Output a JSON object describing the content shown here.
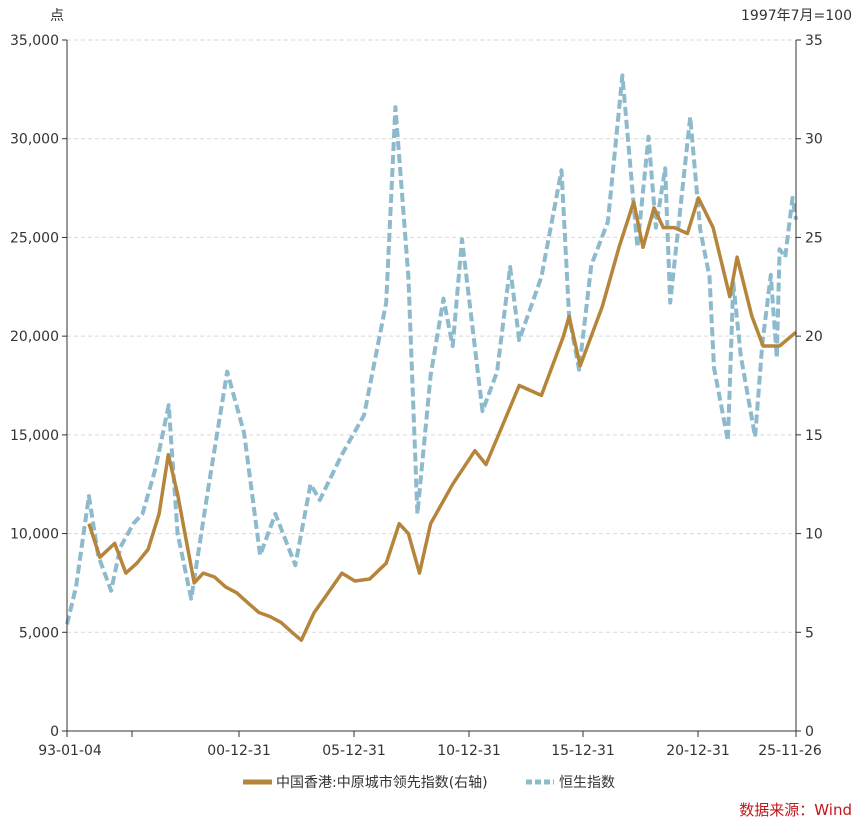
{
  "chart_data": {
    "type": "line",
    "left_unit": "点",
    "right_unit": "1997年7月=100",
    "source_label": "数据来源：Wind",
    "source_color": "#c0161c",
    "grid": "horizontal dashed",
    "legend_position": "bottom-center",
    "left_axis": {
      "min": 0,
      "max": 35000,
      "ticks": [
        "0",
        "5,000",
        "10,000",
        "15,000",
        "20,000",
        "25,000",
        "30,000",
        "35,000"
      ]
    },
    "right_axis": {
      "min": 0,
      "max": 35,
      "ticks": [
        "0",
        "5",
        "10",
        "15",
        "20",
        "25",
        "30",
        "35"
      ]
    },
    "x_axis": {
      "start": "1993-01-04",
      "end": "2025-11-26",
      "tick_labels": [
        "93-01-04",
        "00-12-31",
        "05-12-31",
        "10-12-31",
        "15-12-31",
        "20-12-31",
        "25-11-26"
      ]
    },
    "series": [
      {
        "name": "中国香港:中原城市领先指数(右轴)",
        "axis": "right",
        "color": "#b5853b",
        "style": "solid",
        "points": [
          [
            "1994-01-01",
            10.5
          ],
          [
            "1994-07-01",
            8.8
          ],
          [
            "1995-03-01",
            9.5
          ],
          [
            "1995-09-01",
            8.0
          ],
          [
            "1996-03-01",
            8.5
          ],
          [
            "1996-09-01",
            9.2
          ],
          [
            "1997-03-01",
            11.0
          ],
          [
            "1997-08-01",
            14.0
          ],
          [
            "1998-01-01",
            12.0
          ],
          [
            "1998-06-01",
            9.5
          ],
          [
            "1998-10-01",
            7.5
          ],
          [
            "1999-03-01",
            8.0
          ],
          [
            "1999-09-01",
            7.8
          ],
          [
            "2000-03-01",
            7.3
          ],
          [
            "2000-09-01",
            7.0
          ],
          [
            "2001-03-01",
            6.5
          ],
          [
            "2001-09-01",
            6.0
          ],
          [
            "2002-03-01",
            5.8
          ],
          [
            "2002-09-01",
            5.5
          ],
          [
            "2003-03-01",
            5.0
          ],
          [
            "2003-08-01",
            4.6
          ],
          [
            "2004-03-01",
            6.0
          ],
          [
            "2004-09-01",
            6.8
          ],
          [
            "2005-06-01",
            8.0
          ],
          [
            "2006-01-01",
            7.6
          ],
          [
            "2006-09-01",
            7.7
          ],
          [
            "2007-06-01",
            8.5
          ],
          [
            "2008-01-01",
            10.5
          ],
          [
            "2008-06-01",
            10.0
          ],
          [
            "2008-12-01",
            8.0
          ],
          [
            "2009-06-01",
            10.5
          ],
          [
            "2010-06-01",
            12.5
          ],
          [
            "2011-06-01",
            14.2
          ],
          [
            "2011-12-01",
            13.5
          ],
          [
            "2012-09-01",
            15.5
          ],
          [
            "2013-06-01",
            17.5
          ],
          [
            "2014-06-01",
            17.0
          ],
          [
            "2015-06-01",
            20.0
          ],
          [
            "2015-09-01",
            21.0
          ],
          [
            "2016-03-01",
            18.5
          ],
          [
            "2017-03-01",
            21.5
          ],
          [
            "2017-12-01",
            24.5
          ],
          [
            "2018-08-01",
            26.8
          ],
          [
            "2019-01-01",
            24.5
          ],
          [
            "2019-07-01",
            26.5
          ],
          [
            "2019-12-01",
            25.5
          ],
          [
            "2020-06-01",
            25.5
          ],
          [
            "2021-01-01",
            25.2
          ],
          [
            "2021-07-01",
            27.0
          ],
          [
            "2022-03-01",
            25.5
          ],
          [
            "2022-12-01",
            22.0
          ],
          [
            "2023-04-01",
            24.0
          ],
          [
            "2023-12-01",
            21.0
          ],
          [
            "2024-06-01",
            19.5
          ],
          [
            "2025-03-01",
            19.5
          ],
          [
            "2025-11-26",
            20.2
          ]
        ]
      },
      {
        "name": "恒生指数",
        "axis": "left",
        "color": "#8dbacd",
        "style": "dashed",
        "points": [
          [
            "1993-01-04",
            5400
          ],
          [
            "1993-06-01",
            7300
          ],
          [
            "1993-12-31",
            11900
          ],
          [
            "1994-06-01",
            8900
          ],
          [
            "1995-01-01",
            7100
          ],
          [
            "1995-06-01",
            9300
          ],
          [
            "1996-01-01",
            10500
          ],
          [
            "1996-06-01",
            11000
          ],
          [
            "1997-01-01",
            13300
          ],
          [
            "1997-08-07",
            16500
          ],
          [
            "1998-01-01",
            10000
          ],
          [
            "1998-08-13",
            6700
          ],
          [
            "1999-06-01",
            12500
          ],
          [
            "2000-03-28",
            18200
          ],
          [
            "2000-12-31",
            15100
          ],
          [
            "2001-09-21",
            8900
          ],
          [
            "2002-06-01",
            11000
          ],
          [
            "2002-12-31",
            9300
          ],
          [
            "2003-04-25",
            8400
          ],
          [
            "2003-12-31",
            12500
          ],
          [
            "2004-06-01",
            11700
          ],
          [
            "2005-06-01",
            14000
          ],
          [
            "2006-06-01",
            16000
          ],
          [
            "2007-06-01",
            21700
          ],
          [
            "2007-10-30",
            31600
          ],
          [
            "2008-06-01",
            23000
          ],
          [
            "2008-10-27",
            11000
          ],
          [
            "2009-06-01",
            18000
          ],
          [
            "2009-12-31",
            21900
          ],
          [
            "2010-06-01",
            19500
          ],
          [
            "2010-11-01",
            24900
          ],
          [
            "2011-10-04",
            16200
          ],
          [
            "2012-06-01",
            18200
          ],
          [
            "2013-01-01",
            23500
          ],
          [
            "2013-06-01",
            19800
          ],
          [
            "2014-06-01",
            23000
          ],
          [
            "2015-04-28",
            28400
          ],
          [
            "2015-09-01",
            21000
          ],
          [
            "2016-02-12",
            18300
          ],
          [
            "2016-09-01",
            23600
          ],
          [
            "2017-06-01",
            25800
          ],
          [
            "2018-01-26",
            33200
          ],
          [
            "2018-10-01",
            24500
          ],
          [
            "2019-04-01",
            30100
          ],
          [
            "2019-08-01",
            25500
          ],
          [
            "2020-01-01",
            28500
          ],
          [
            "2020-03-23",
            21700
          ],
          [
            "2021-02-17",
            31100
          ],
          [
            "2021-08-01",
            25400
          ],
          [
            "2022-01-01",
            23000
          ],
          [
            "2022-03-15",
            18400
          ],
          [
            "2022-10-31",
            14700
          ],
          [
            "2023-01-27",
            22700
          ],
          [
            "2023-06-01",
            19000
          ],
          [
            "2024-01-22",
            14900
          ],
          [
            "2024-05-20",
            19600
          ],
          [
            "2024-10-07",
            23100
          ],
          [
            "2025-01-13",
            18900
          ],
          [
            "2025-03-01",
            24400
          ],
          [
            "2025-06-01",
            24000
          ],
          [
            "2025-09-30",
            27000
          ],
          [
            "2025-11-26",
            25900
          ]
        ]
      }
    ]
  }
}
